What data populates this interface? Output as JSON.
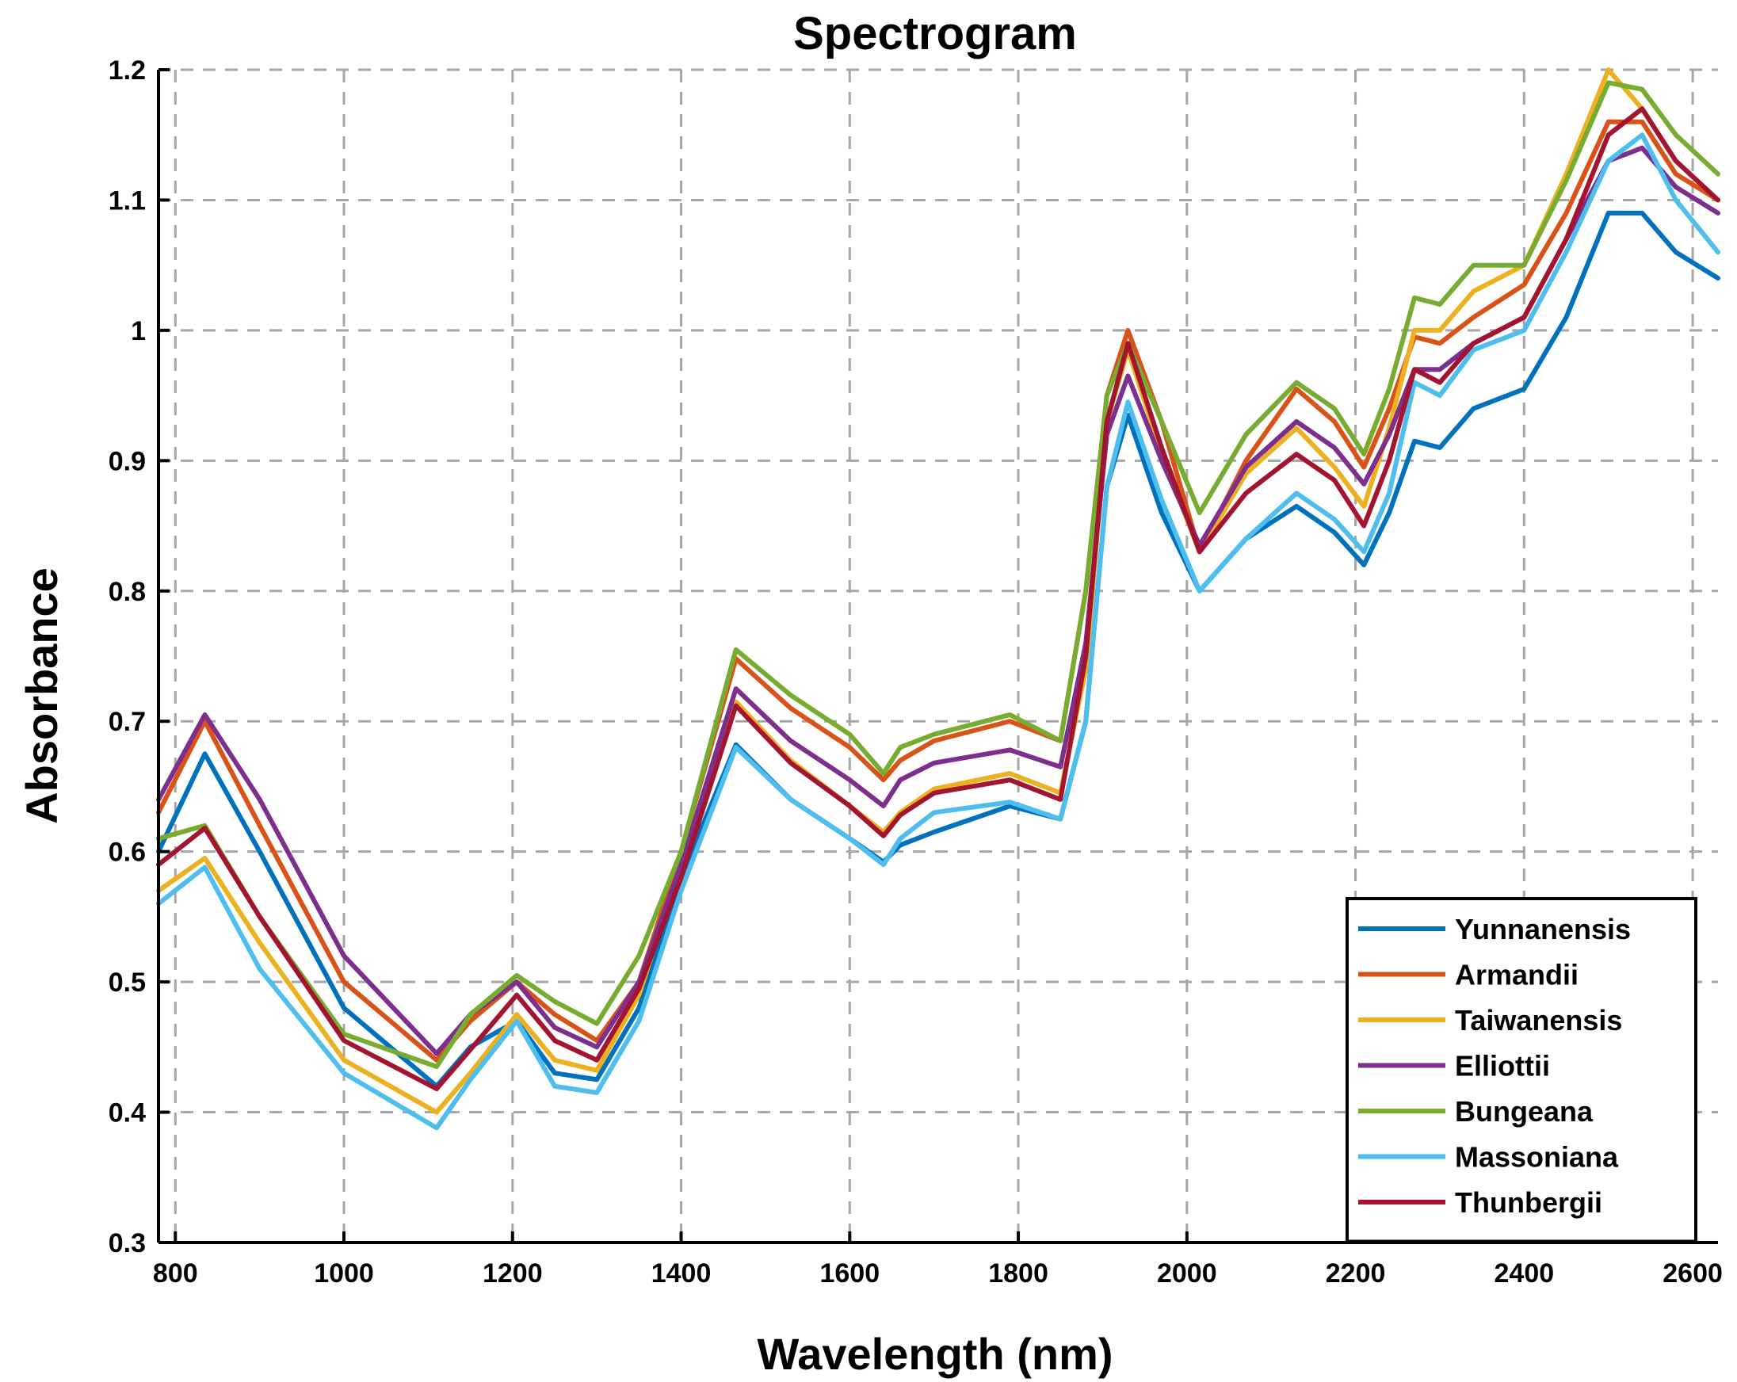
{
  "chart_data": {
    "type": "line",
    "title": "Spectrogram",
    "xlabel": "Wavelength (nm)",
    "ylabel": "Absorbance",
    "xlim": [
      780,
      2630
    ],
    "ylim": [
      0.3,
      1.2
    ],
    "xticks": [
      800,
      1000,
      1200,
      1400,
      1600,
      1800,
      2000,
      2200,
      2400,
      2600
    ],
    "yticks": [
      0.3,
      0.4,
      0.5,
      0.6,
      0.7,
      0.8,
      0.9,
      1.0,
      1.1,
      1.2
    ],
    "xtick_labels": [
      "800",
      "1000",
      "1200",
      "1400",
      "1600",
      "1800",
      "2000",
      "2200",
      "2400",
      "2600"
    ],
    "ytick_labels": [
      "0.3",
      "0.4",
      "0.5",
      "0.6",
      "0.7",
      "0.8",
      "0.9",
      "1",
      "1.1",
      "1.2"
    ],
    "grid": true,
    "legend_position": "bottom-right",
    "x": [
      780,
      835,
      900,
      1000,
      1110,
      1150,
      1205,
      1250,
      1300,
      1350,
      1400,
      1465,
      1530,
      1600,
      1640,
      1660,
      1700,
      1790,
      1850,
      1880,
      1905,
      1930,
      1970,
      2015,
      2070,
      2130,
      2175,
      2210,
      2240,
      2270,
      2300,
      2340,
      2400,
      2450,
      2500,
      2540,
      2580,
      2630
    ],
    "series": [
      {
        "name": "Yunnanensis",
        "color": "#0072BD",
        "values": [
          0.6,
          0.675,
          0.6,
          0.48,
          0.42,
          0.45,
          0.47,
          0.43,
          0.425,
          0.48,
          0.58,
          0.682,
          0.64,
          0.61,
          0.592,
          0.605,
          0.615,
          0.635,
          0.625,
          0.7,
          0.88,
          0.935,
          0.86,
          0.8,
          0.84,
          0.865,
          0.845,
          0.82,
          0.86,
          0.915,
          0.91,
          0.94,
          0.955,
          1.01,
          1.09,
          1.09,
          1.06,
          1.04
        ]
      },
      {
        "name": "Armandii",
        "color": "#D95319",
        "values": [
          0.63,
          0.7,
          0.62,
          0.5,
          0.44,
          0.47,
          0.5,
          0.475,
          0.455,
          0.5,
          0.6,
          0.748,
          0.71,
          0.68,
          0.655,
          0.67,
          0.685,
          0.7,
          0.685,
          0.8,
          0.95,
          1.0,
          0.93,
          0.83,
          0.9,
          0.955,
          0.93,
          0.895,
          0.94,
          0.995,
          0.99,
          1.01,
          1.035,
          1.09,
          1.16,
          1.16,
          1.12,
          1.1
        ]
      },
      {
        "name": "Taiwanensis",
        "color": "#EDB120",
        "values": [
          0.57,
          0.595,
          0.53,
          0.44,
          0.4,
          0.43,
          0.475,
          0.44,
          0.432,
          0.49,
          0.59,
          0.715,
          0.67,
          0.635,
          0.615,
          0.63,
          0.648,
          0.66,
          0.645,
          0.74,
          0.93,
          0.985,
          0.905,
          0.83,
          0.89,
          0.925,
          0.895,
          0.865,
          0.925,
          1.0,
          1.0,
          1.03,
          1.05,
          1.12,
          1.2,
          1.17,
          1.13,
          1.1
        ]
      },
      {
        "name": "Elliottii",
        "color": "#7E2F8E",
        "values": [
          0.64,
          0.705,
          0.64,
          0.52,
          0.445,
          0.475,
          0.5,
          0.465,
          0.45,
          0.5,
          0.59,
          0.725,
          0.685,
          0.655,
          0.635,
          0.655,
          0.668,
          0.678,
          0.665,
          0.76,
          0.92,
          0.965,
          0.9,
          0.835,
          0.895,
          0.93,
          0.91,
          0.882,
          0.92,
          0.97,
          0.97,
          0.99,
          1.01,
          1.07,
          1.13,
          1.14,
          1.11,
          1.09
        ]
      },
      {
        "name": "Bungeana",
        "color": "#77AC30",
        "values": [
          0.61,
          0.62,
          0.55,
          0.46,
          0.435,
          0.475,
          0.505,
          0.485,
          0.468,
          0.52,
          0.6,
          0.755,
          0.72,
          0.69,
          0.66,
          0.68,
          0.69,
          0.705,
          0.685,
          0.8,
          0.95,
          0.99,
          0.93,
          0.86,
          0.92,
          0.96,
          0.94,
          0.905,
          0.955,
          1.025,
          1.02,
          1.05,
          1.05,
          1.115,
          1.19,
          1.185,
          1.15,
          1.12
        ]
      },
      {
        "name": "Massoniana",
        "color": "#4DBEEE",
        "values": [
          0.56,
          0.588,
          0.51,
          0.43,
          0.388,
          0.425,
          0.47,
          0.42,
          0.415,
          0.47,
          0.57,
          0.68,
          0.64,
          0.61,
          0.59,
          0.61,
          0.63,
          0.638,
          0.625,
          0.7,
          0.88,
          0.945,
          0.87,
          0.8,
          0.84,
          0.875,
          0.855,
          0.83,
          0.875,
          0.96,
          0.95,
          0.985,
          1.0,
          1.06,
          1.13,
          1.15,
          1.1,
          1.06
        ]
      },
      {
        "name": "Thunbergii",
        "color": "#A2142F",
        "values": [
          0.59,
          0.618,
          0.55,
          0.455,
          0.418,
          0.448,
          0.49,
          0.455,
          0.44,
          0.495,
          0.58,
          0.712,
          0.668,
          0.635,
          0.612,
          0.628,
          0.645,
          0.655,
          0.64,
          0.75,
          0.93,
          0.99,
          0.91,
          0.83,
          0.875,
          0.905,
          0.885,
          0.85,
          0.9,
          0.97,
          0.96,
          0.99,
          1.01,
          1.07,
          1.15,
          1.17,
          1.13,
          1.1
        ]
      }
    ]
  }
}
